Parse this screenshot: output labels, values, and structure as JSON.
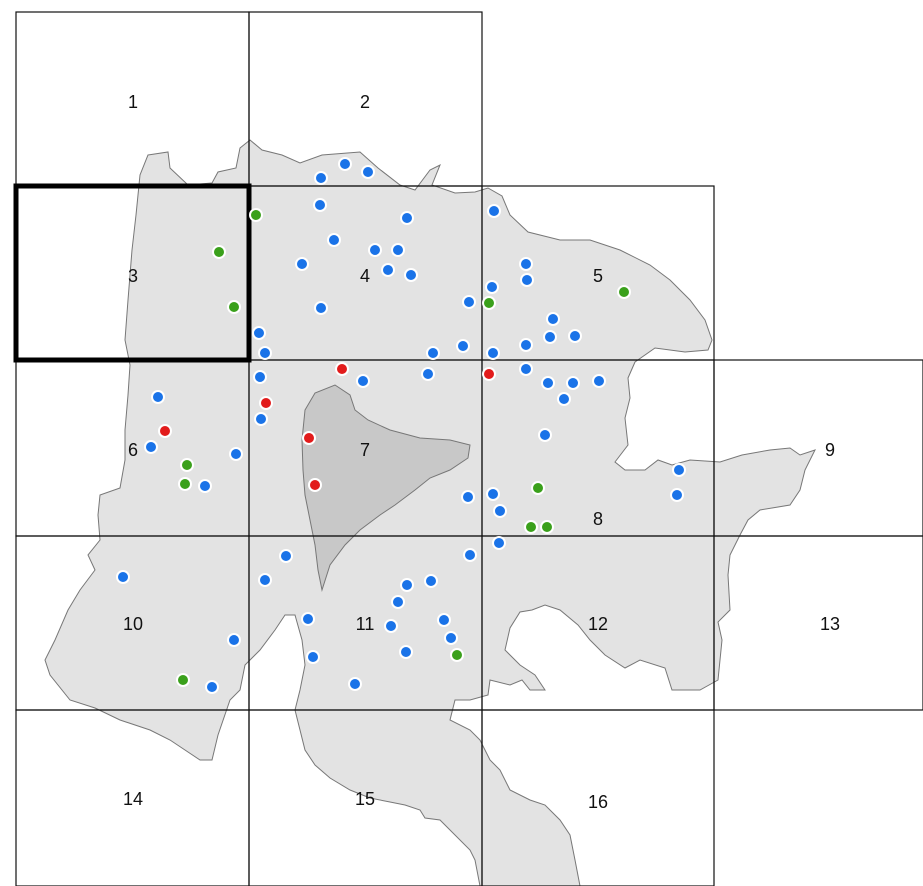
{
  "colors": {
    "background": "#ffffff",
    "city_fill": "#e3e3e3",
    "inner_area_fill": "#c8c8c8",
    "border": "#777777",
    "grid_line": "#111111",
    "marker_outline": "#ffffff"
  },
  "marker_types": {
    "blue": "#1a73e8",
    "green": "#3aa01b",
    "red": "#e21b1b"
  },
  "grid": {
    "selected_cell": "3",
    "cells": [
      {
        "label": "1"
      },
      {
        "label": "2"
      },
      {
        "label": "3"
      },
      {
        "label": "4"
      },
      {
        "label": "5"
      },
      {
        "label": "6"
      },
      {
        "label": "7"
      },
      {
        "label": "8"
      },
      {
        "label": "9"
      },
      {
        "label": "10"
      },
      {
        "label": "11"
      },
      {
        "label": "12"
      },
      {
        "label": "13"
      },
      {
        "label": "14"
      },
      {
        "label": "15"
      },
      {
        "label": "16"
      }
    ]
  }
}
